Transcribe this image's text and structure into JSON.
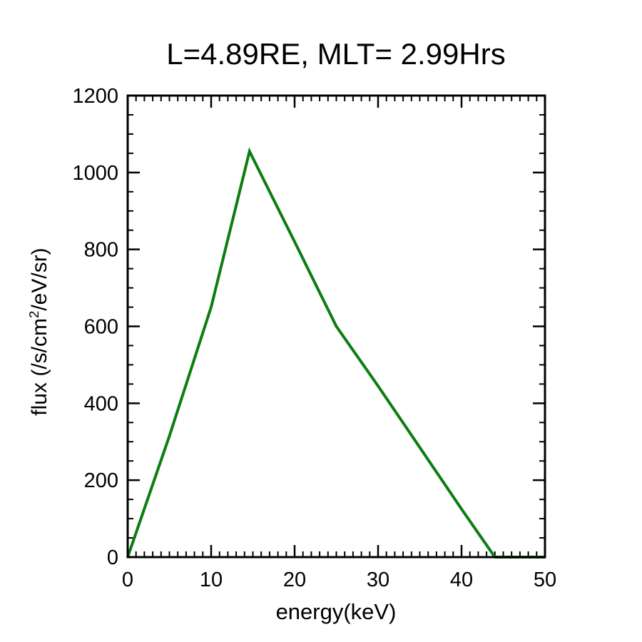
{
  "title": "L=4.89RE, MLT= 2.99Hrs",
  "colors": {
    "line": "#0d7d12",
    "axis": "#000000",
    "background": "#ffffff",
    "text": "#000000"
  },
  "chart_data": {
    "type": "line",
    "title": "L=4.89RE, MLT= 2.99Hrs",
    "xlabel": "energy(keV)",
    "ylabel": "flux (/s/cm²/eV/sr)",
    "xlim": [
      0,
      50
    ],
    "ylim": [
      0,
      1200
    ],
    "xticks": [
      0,
      10,
      20,
      30,
      40,
      50
    ],
    "yticks": [
      0,
      200,
      400,
      600,
      800,
      1000,
      1200
    ],
    "x_minor_step": 1,
    "y_minor_step": 50,
    "grid": false,
    "legend": false,
    "series": [
      {
        "name": "flux",
        "color": "#0d7d12",
        "x": [
          0,
          5,
          10,
          14.6,
          20,
          25,
          30,
          35,
          40,
          44,
          50
        ],
        "y": [
          0,
          315,
          650,
          1055,
          820,
          600,
          445,
          285,
          125,
          0,
          0
        ]
      }
    ]
  }
}
